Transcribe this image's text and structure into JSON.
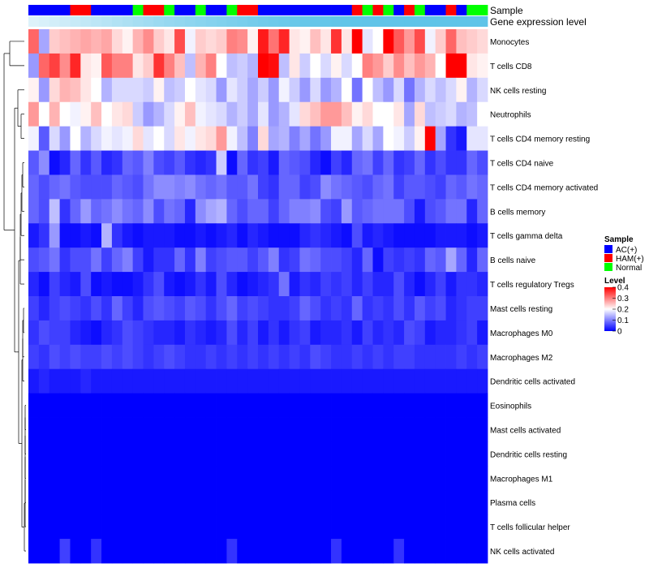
{
  "chart_data": {
    "type": "heatmap",
    "title": "",
    "annotation_tracks": [
      {
        "label": "Sample"
      },
      {
        "label": "Gene expression level"
      }
    ],
    "sample_groups": [
      "A",
      "A",
      "A",
      "A",
      "H",
      "H",
      "A",
      "A",
      "A",
      "A",
      "N",
      "H",
      "H",
      "N",
      "A",
      "A",
      "N",
      "A",
      "A",
      "N",
      "H",
      "H",
      "A",
      "A",
      "A",
      "A",
      "A",
      "A",
      "A",
      "A",
      "A",
      "H",
      "N",
      "H",
      "N",
      "A",
      "H",
      "N",
      "A",
      "A",
      "H",
      "A",
      "N",
      "N"
    ],
    "gene_expression_shades": [
      0.08,
      0.12,
      0.16,
      0.2,
      0.24,
      0.28,
      0.32,
      0.36,
      0.4,
      0.44,
      0.48,
      0.52,
      0.56,
      0.6,
      0.63,
      0.66,
      0.69,
      0.72,
      0.75,
      0.78,
      0.81,
      0.84,
      0.87,
      0.89,
      0.91,
      0.93,
      0.95,
      0.96,
      0.97,
      0.98,
      0.985,
      0.99,
      0.992,
      0.994,
      0.995,
      0.996,
      0.997,
      0.998,
      0.999,
      1.0,
      1.0,
      1.0,
      1.0,
      1.0
    ],
    "rows": [
      "Monocytes",
      "T cells CD8",
      "NK cells resting",
      "Neutrophils",
      "T cells CD4 memory resting",
      "T cells CD4 naive",
      "T cells CD4 memory activated",
      "B cells memory",
      "T cells gamma delta",
      "B cells naive",
      "T cells regulatory  Tregs",
      "Mast cells resting",
      "Macrophages M0",
      "Macrophages M2",
      "Dendritic cells activated",
      "Eosinophils",
      "Mast cells activated",
      "Dendritic cells resting",
      "Macrophages M1",
      "Plasma cells",
      "T cells follicular helper",
      "NK cells activated"
    ],
    "values": [
      [
        0.32,
        0.13,
        0.24,
        0.25,
        0.26,
        0.27,
        0.26,
        0.27,
        0.23,
        0.21,
        0.26,
        0.29,
        0.24,
        0.22,
        0.34,
        0.19,
        0.24,
        0.23,
        0.24,
        0.3,
        0.29,
        0.21,
        0.38,
        0.31,
        0.37,
        0.22,
        0.21,
        0.25,
        0.22,
        0.36,
        0.22,
        0.4,
        0.18,
        0.2,
        0.4,
        0.33,
        0.28,
        0.34,
        0.19,
        0.24,
        0.32,
        0.25,
        0.24,
        0.23
      ],
      [
        0.12,
        0.32,
        0.35,
        0.29,
        0.37,
        0.22,
        0.21,
        0.33,
        0.3,
        0.3,
        0.22,
        0.24,
        0.36,
        0.3,
        0.25,
        0.15,
        0.26,
        0.3,
        0.2,
        0.15,
        0.16,
        0.14,
        0.4,
        0.39,
        0.15,
        0.22,
        0.16,
        0.2,
        0.17,
        0.21,
        0.17,
        0.2,
        0.3,
        0.28,
        0.24,
        0.29,
        0.25,
        0.28,
        0.26,
        0.2,
        0.41,
        0.4,
        0.22,
        0.21
      ],
      [
        0.21,
        0.12,
        0.23,
        0.26,
        0.25,
        0.22,
        0.2,
        0.14,
        0.17,
        0.17,
        0.17,
        0.16,
        0.21,
        0.15,
        0.16,
        0.2,
        0.18,
        0.17,
        0.12,
        0.18,
        0.16,
        0.13,
        0.16,
        0.12,
        0.19,
        0.16,
        0.12,
        0.17,
        0.12,
        0.14,
        0.2,
        0.09,
        0.2,
        0.15,
        0.12,
        0.17,
        0.09,
        0.14,
        0.17,
        0.15,
        0.17,
        0.21,
        0.14,
        0.17
      ],
      [
        0.28,
        0.2,
        0.26,
        0.2,
        0.19,
        0.21,
        0.25,
        0.2,
        0.22,
        0.23,
        0.16,
        0.12,
        0.14,
        0.17,
        0.21,
        0.25,
        0.19,
        0.18,
        0.17,
        0.14,
        0.16,
        0.13,
        0.18,
        0.12,
        0.14,
        0.18,
        0.23,
        0.25,
        0.28,
        0.28,
        0.25,
        0.21,
        0.23,
        0.2,
        0.2,
        0.22,
        0.13,
        0.23,
        0.15,
        0.16,
        0.17,
        0.14,
        0.15,
        0.2
      ],
      [
        0.19,
        0.07,
        0.17,
        0.12,
        0.2,
        0.14,
        0.17,
        0.19,
        0.18,
        0.19,
        0.23,
        0.18,
        0.2,
        0.17,
        0.22,
        0.19,
        0.22,
        0.23,
        0.28,
        0.19,
        0.15,
        0.1,
        0.23,
        0.13,
        0.14,
        0.1,
        0.13,
        0.09,
        0.12,
        0.19,
        0.19,
        0.13,
        0.17,
        0.13,
        0.2,
        0.19,
        0.16,
        0.21,
        0.42,
        0.13,
        0.04,
        0.02,
        0.18,
        0.18
      ],
      [
        0.07,
        0.11,
        0.01,
        0.03,
        0.08,
        0.04,
        0.07,
        0.03,
        0.04,
        0.08,
        0.07,
        0.1,
        0.06,
        0.05,
        0.07,
        0.04,
        0.03,
        0.04,
        0.16,
        0.01,
        0.08,
        0.04,
        0.05,
        0.02,
        0.08,
        0.07,
        0.06,
        0.03,
        0.01,
        0.05,
        0.03,
        0.08,
        0.09,
        0.05,
        0.08,
        0.04,
        0.05,
        0.08,
        0.04,
        0.06,
        0.04,
        0.04,
        0.08,
        0.06
      ],
      [
        0.08,
        0.06,
        0.08,
        0.09,
        0.07,
        0.06,
        0.06,
        0.06,
        0.08,
        0.07,
        0.06,
        0.09,
        0.11,
        0.11,
        0.1,
        0.11,
        0.09,
        0.08,
        0.09,
        0.07,
        0.07,
        0.09,
        0.05,
        0.04,
        0.08,
        0.08,
        0.05,
        0.06,
        0.11,
        0.09,
        0.08,
        0.07,
        0.06,
        0.08,
        0.09,
        0.05,
        0.07,
        0.07,
        0.06,
        0.05,
        0.08,
        0.07,
        0.09,
        0.08
      ],
      [
        0.08,
        0.06,
        0.15,
        0.04,
        0.08,
        0.12,
        0.08,
        0.09,
        0.11,
        0.09,
        0.08,
        0.11,
        0.06,
        0.09,
        0.08,
        0.03,
        0.11,
        0.13,
        0.14,
        0.08,
        0.06,
        0.08,
        0.08,
        0.05,
        0.08,
        0.1,
        0.1,
        0.11,
        0.06,
        0.05,
        0.12,
        0.07,
        0.08,
        0.09,
        0.09,
        0.09,
        0.06,
        0.02,
        0.06,
        0.07,
        0.09,
        0.09,
        0.03,
        0.08
      ],
      [
        0.02,
        0.04,
        0.12,
        0.01,
        0.01,
        0.02,
        0.01,
        0.14,
        0.04,
        0.02,
        0.01,
        0.02,
        0.02,
        0.02,
        0.01,
        0.01,
        0.02,
        0.01,
        0.02,
        0.03,
        0.01,
        0.03,
        0.02,
        0.01,
        0.01,
        0.01,
        0.03,
        0.04,
        0.03,
        0.02,
        0.01,
        0.06,
        0.02,
        0.03,
        0.02,
        0.01,
        0.01,
        0.01,
        0.01,
        0.02,
        0.02,
        0.02,
        0.01,
        0.02
      ],
      [
        0.06,
        0.07,
        0.09,
        0.04,
        0.06,
        0.06,
        0.09,
        0.05,
        0.08,
        0.1,
        0.05,
        0.02,
        0.04,
        0.04,
        0.08,
        0.04,
        0.1,
        0.05,
        0.06,
        0.07,
        0.07,
        0.05,
        0.07,
        0.1,
        0.04,
        0.05,
        0.09,
        0.08,
        0.06,
        0.06,
        0.05,
        0.03,
        0.08,
        0.01,
        0.05,
        0.04,
        0.05,
        0.04,
        0.08,
        0.07,
        0.13,
        0.08,
        0.03,
        0.08
      ],
      [
        0.03,
        0.01,
        0.05,
        0.03,
        0.02,
        0.06,
        0.01,
        0.02,
        0.01,
        0.01,
        0.02,
        0.04,
        0.06,
        0.02,
        0.01,
        0.02,
        0.04,
        0.02,
        0.06,
        0.03,
        0.01,
        0.02,
        0.03,
        0.04,
        0.09,
        0.02,
        0.04,
        0.03,
        0.05,
        0.04,
        0.05,
        0.03,
        0.05,
        0.03,
        0.03,
        0.06,
        0.03,
        0.01,
        0.03,
        0.05,
        0.02,
        0.04,
        0.04,
        0.03
      ],
      [
        0.05,
        0.03,
        0.05,
        0.06,
        0.05,
        0.04,
        0.06,
        0.04,
        0.08,
        0.05,
        0.03,
        0.06,
        0.07,
        0.06,
        0.05,
        0.07,
        0.06,
        0.04,
        0.06,
        0.08,
        0.05,
        0.06,
        0.05,
        0.04,
        0.04,
        0.05,
        0.08,
        0.06,
        0.04,
        0.05,
        0.04,
        0.08,
        0.04,
        0.05,
        0.04,
        0.06,
        0.04,
        0.07,
        0.05,
        0.06,
        0.03,
        0.04,
        0.05,
        0.05
      ],
      [
        0.04,
        0.06,
        0.05,
        0.05,
        0.03,
        0.02,
        0.01,
        0.03,
        0.04,
        0.06,
        0.05,
        0.04,
        0.03,
        0.03,
        0.02,
        0.04,
        0.03,
        0.02,
        0.03,
        0.06,
        0.03,
        0.05,
        0.02,
        0.04,
        0.02,
        0.04,
        0.05,
        0.02,
        0.03,
        0.03,
        0.04,
        0.02,
        0.05,
        0.03,
        0.04,
        0.03,
        0.06,
        0.05,
        0.02,
        0.03,
        0.03,
        0.04,
        0.05,
        0.02
      ],
      [
        0.05,
        0.04,
        0.06,
        0.05,
        0.06,
        0.05,
        0.05,
        0.06,
        0.05,
        0.06,
        0.05,
        0.04,
        0.05,
        0.06,
        0.05,
        0.04,
        0.04,
        0.05,
        0.04,
        0.05,
        0.04,
        0.05,
        0.04,
        0.05,
        0.04,
        0.05,
        0.04,
        0.06,
        0.05,
        0.04,
        0.04,
        0.05,
        0.04,
        0.05,
        0.04,
        0.05,
        0.05,
        0.04,
        0.04,
        0.04,
        0.04,
        0.05,
        0.04,
        0.05
      ],
      [
        0.02,
        0.03,
        0.02,
        0.02,
        0.02,
        0.03,
        0.02,
        0.02,
        0.02,
        0.02,
        0.02,
        0.02,
        0.02,
        0.02,
        0.02,
        0.02,
        0.02,
        0.02,
        0.02,
        0.02,
        0.02,
        0.02,
        0.02,
        0.02,
        0.02,
        0.02,
        0.02,
        0.02,
        0.02,
        0.02,
        0.02,
        0.02,
        0.02,
        0.02,
        0.02,
        0.02,
        0.02,
        0.02,
        0.02,
        0.02,
        0.02,
        0.02,
        0.02,
        0.02
      ],
      [
        0,
        0,
        0,
        0,
        0,
        0,
        0,
        0,
        0,
        0,
        0,
        0,
        0,
        0,
        0,
        0,
        0,
        0,
        0,
        0,
        0,
        0,
        0,
        0,
        0,
        0,
        0,
        0,
        0,
        0,
        0,
        0,
        0,
        0,
        0,
        0,
        0,
        0,
        0,
        0,
        0,
        0,
        0,
        0
      ],
      [
        0,
        0,
        0,
        0,
        0,
        0,
        0,
        0,
        0,
        0,
        0,
        0,
        0,
        0,
        0,
        0,
        0,
        0,
        0,
        0,
        0,
        0,
        0,
        0,
        0,
        0,
        0,
        0,
        0,
        0,
        0,
        0,
        0,
        0,
        0,
        0,
        0,
        0,
        0,
        0,
        0,
        0,
        0,
        0
      ],
      [
        0,
        0,
        0,
        0,
        0,
        0,
        0,
        0,
        0,
        0,
        0,
        0,
        0,
        0,
        0,
        0,
        0,
        0,
        0,
        0,
        0,
        0,
        0,
        0,
        0,
        0,
        0,
        0,
        0,
        0,
        0,
        0,
        0,
        0,
        0,
        0,
        0,
        0,
        0,
        0,
        0,
        0,
        0,
        0
      ],
      [
        0,
        0,
        0,
        0,
        0,
        0,
        0,
        0,
        0,
        0,
        0,
        0,
        0,
        0,
        0,
        0,
        0,
        0,
        0,
        0,
        0,
        0,
        0,
        0,
        0,
        0,
        0,
        0,
        0,
        0,
        0,
        0,
        0,
        0,
        0,
        0,
        0,
        0,
        0,
        0,
        0,
        0,
        0,
        0
      ],
      [
        0,
        0,
        0,
        0,
        0,
        0,
        0,
        0,
        0,
        0,
        0,
        0,
        0,
        0,
        0,
        0,
        0,
        0,
        0,
        0,
        0,
        0,
        0,
        0,
        0,
        0,
        0,
        0,
        0,
        0,
        0,
        0,
        0,
        0,
        0,
        0,
        0,
        0,
        0,
        0,
        0,
        0,
        0,
        0
      ],
      [
        0,
        0,
        0,
        0,
        0,
        0,
        0,
        0,
        0,
        0,
        0,
        0,
        0,
        0,
        0,
        0,
        0,
        0,
        0,
        0,
        0,
        0,
        0,
        0,
        0,
        0,
        0,
        0,
        0,
        0,
        0,
        0,
        0,
        0,
        0,
        0,
        0,
        0,
        0,
        0,
        0,
        0,
        0,
        0
      ],
      [
        0,
        0,
        0,
        0.05,
        0,
        0,
        0.04,
        0,
        0,
        0,
        0,
        0,
        0,
        0,
        0,
        0,
        0,
        0,
        0,
        0.04,
        0,
        0,
        0,
        0,
        0,
        0,
        0,
        0,
        0,
        0.04,
        0,
        0,
        0,
        0,
        0,
        0.04,
        0,
        0,
        0,
        0,
        0,
        0,
        0,
        0
      ]
    ],
    "color_scale": {
      "min": 0,
      "max": 0.4,
      "low": "#0000ff",
      "mid": "#ffffff",
      "high": "#ff0000",
      "mid_value": 0.2
    },
    "legend": {
      "placement": "right",
      "sample_title": "Sample",
      "sample_items": [
        {
          "label": "AC(+)",
          "code": "A",
          "color": "#0000ff"
        },
        {
          "label": "HAM(+)",
          "code": "H",
          "color": "#ff0000"
        },
        {
          "label": "Normal",
          "code": "N",
          "color": "#00ff00"
        }
      ],
      "level_title": "Level",
      "level_ticks": [
        "0.4",
        "0.3",
        "0.2",
        "0.1",
        "0"
      ]
    }
  }
}
